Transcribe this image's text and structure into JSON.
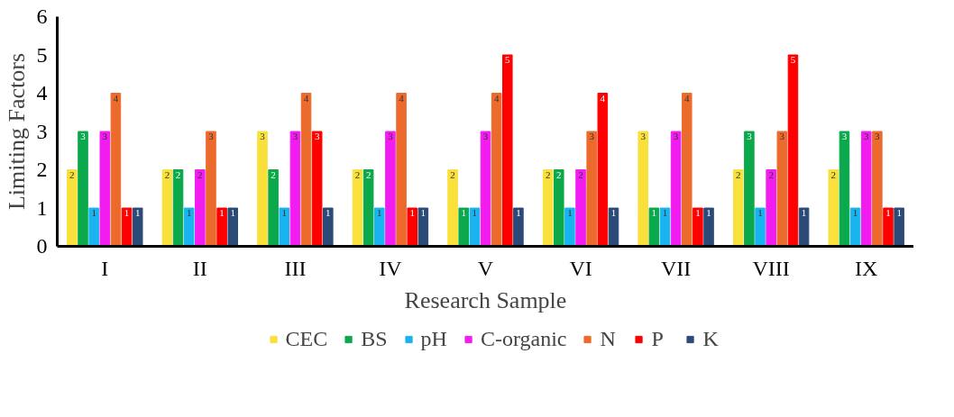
{
  "chart_data": {
    "type": "bar",
    "xlabel": "Research Sample",
    "ylabel": "Limiting Factors",
    "categories": [
      "I",
      "II",
      "III",
      "IV",
      "V",
      "VI",
      "VII",
      "VIII",
      "IX"
    ],
    "series": [
      {
        "name": "CEC",
        "color": "#f9e03a",
        "values": [
          2,
          2,
          3,
          2,
          2,
          2,
          3,
          2,
          2
        ]
      },
      {
        "name": "BS",
        "color": "#0ca84c",
        "values": [
          3,
          2,
          2,
          2,
          1,
          2,
          1,
          3,
          3
        ]
      },
      {
        "name": "pH",
        "color": "#19b4f0",
        "values": [
          1,
          1,
          1,
          1,
          1,
          1,
          1,
          1,
          1
        ]
      },
      {
        "name": "C-organic",
        "color": "#f21cf0",
        "values": [
          3,
          2,
          3,
          3,
          3,
          2,
          3,
          2,
          3
        ]
      },
      {
        "name": "N",
        "color": "#ec6a2c",
        "values": [
          4,
          3,
          4,
          4,
          4,
          3,
          4,
          3,
          3
        ]
      },
      {
        "name": "P",
        "color": "#ff0000",
        "values": [
          1,
          1,
          3,
          1,
          5,
          4,
          1,
          5,
          1
        ]
      },
      {
        "name": "K",
        "color": "#2c4a77",
        "values": [
          1,
          1,
          1,
          1,
          1,
          1,
          1,
          1,
          1
        ]
      }
    ],
    "ylim": [
      0,
      6
    ],
    "yticks": [
      0,
      1,
      2,
      3,
      4,
      5,
      6
    ],
    "grid": false,
    "legend": "bottom",
    "data_labels": true
  }
}
